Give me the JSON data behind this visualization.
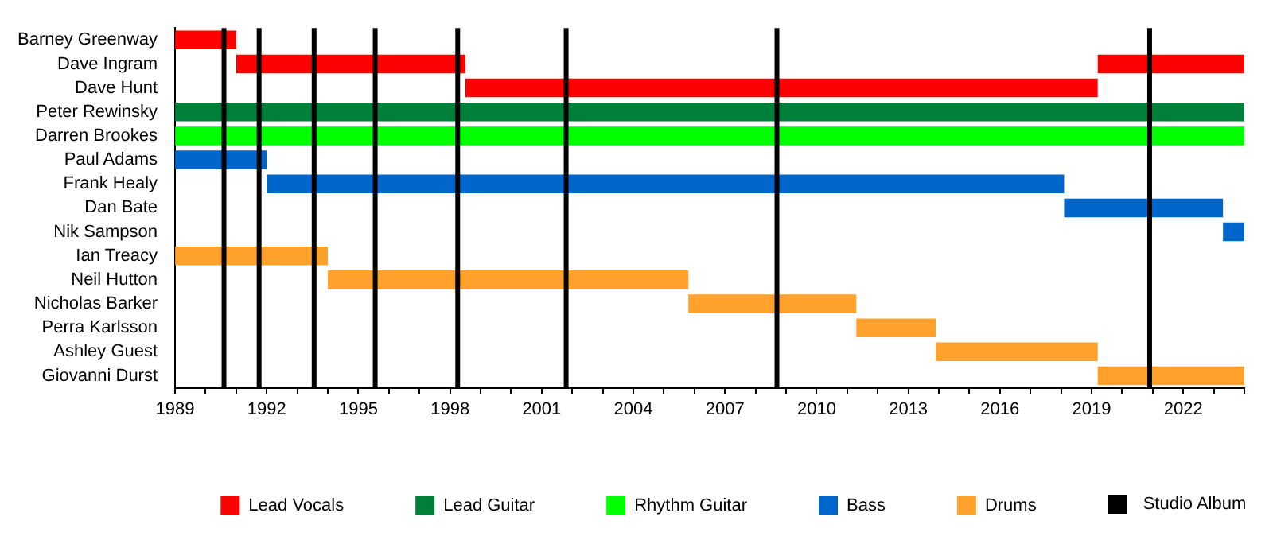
{
  "chart_data": {
    "type": "bar",
    "orientation": "horizontal",
    "categories": [
      "Barney Greenway",
      "Dave Ingram",
      "Dave Hunt",
      "Peter Rewinsky",
      "Darren Brookes",
      "Paul Adams",
      "Frank Healy",
      "Dan Bate",
      "Nik Sampson",
      "Ian Treacy",
      "Neil Hutton",
      "Nicholas Barker",
      "Perra Karlsson",
      "Ashley Guest",
      "Giovanni Durst"
    ],
    "series": [
      {
        "name": "Lead Vocals",
        "color": "#ff0000",
        "values": [
          2,
          7.5,
          20.7,
          null,
          null,
          null,
          null,
          null,
          null,
          null,
          null,
          null,
          null,
          null,
          null
        ],
        "base": [
          1989,
          1991,
          1998.5,
          null,
          null,
          null,
          null,
          null,
          null,
          null,
          null,
          null,
          null,
          null,
          null
        ]
      },
      {
        "color": "#ff0000",
        "values": [
          null,
          4.8,
          null,
          null,
          null,
          null,
          null,
          null,
          null,
          null,
          null,
          null,
          null,
          null,
          null
        ],
        "base": [
          null,
          2019.2,
          null,
          null,
          null,
          null,
          null,
          null,
          null,
          null,
          null,
          null,
          null,
          null,
          null
        ]
      },
      {
        "name": "Lead Guitar",
        "color": "#007f3b",
        "values": [
          null,
          null,
          null,
          35,
          null,
          null,
          null,
          null,
          null,
          null,
          null,
          null,
          null,
          null,
          null
        ],
        "base": [
          null,
          null,
          null,
          1989,
          null,
          null,
          null,
          null,
          null,
          null,
          null,
          null,
          null,
          null,
          null
        ]
      },
      {
        "name": "Rhythm Guitar",
        "color": "#00ff00",
        "values": [
          null,
          null,
          null,
          null,
          35,
          null,
          null,
          null,
          null,
          null,
          null,
          null,
          null,
          null,
          null
        ],
        "base": [
          null,
          null,
          null,
          null,
          1989,
          null,
          null,
          null,
          null,
          null,
          null,
          null,
          null,
          null,
          null
        ]
      },
      {
        "name": "Bass",
        "color": "#0066cc",
        "values": [
          null,
          null,
          null,
          null,
          null,
          3,
          26.1,
          5.2,
          0.7,
          null,
          null,
          null,
          null,
          null,
          null
        ],
        "base": [
          null,
          null,
          null,
          null,
          null,
          1989,
          1992,
          2018.1,
          2023.3,
          null,
          null,
          null,
          null,
          null,
          null
        ]
      },
      {
        "name": "Drums",
        "color": "#ffa12b",
        "values": [
          null,
          null,
          null,
          null,
          null,
          null,
          null,
          null,
          null,
          5,
          11.8,
          5.5,
          2.6,
          5.3,
          4.8
        ],
        "base": [
          null,
          null,
          null,
          null,
          null,
          null,
          null,
          null,
          null,
          1989,
          1994,
          2005.8,
          2011.3,
          2013.9,
          2019.2
        ]
      }
    ],
    "xlim": [
      1989,
      2024
    ],
    "xticks": [
      1989,
      {
        "value": 1990,
        "label": null
      },
      {
        "value": 1991,
        "label": null
      },
      1992,
      {
        "value": 1993,
        "label": null
      },
      {
        "value": 1994,
        "label": null
      },
      1995,
      {
        "value": 1996,
        "label": null
      },
      {
        "value": 1997,
        "label": null
      },
      1998,
      {
        "value": 1999,
        "label": null
      },
      {
        "value": 2000,
        "label": null
      },
      2001,
      {
        "value": 2002,
        "label": null
      },
      {
        "value": 2003,
        "label": null
      },
      2004,
      {
        "value": 2005,
        "label": null
      },
      {
        "value": 2006,
        "label": null
      },
      2007,
      {
        "value": 2008,
        "label": null
      },
      {
        "value": 2009,
        "label": null
      },
      2010,
      {
        "value": 2011,
        "label": null
      },
      {
        "value": 2012,
        "label": null
      },
      2013,
      {
        "value": 2014,
        "label": null
      },
      {
        "value": 2015,
        "label": null
      },
      2016,
      {
        "value": 2017,
        "label": null
      },
      {
        "value": 2018,
        "label": null
      },
      2019,
      {
        "value": 2020,
        "label": null
      },
      {
        "value": 2021,
        "label": null
      },
      2022,
      {
        "value": 2023,
        "label": null
      },
      {
        "value": 2024,
        "label": null
      }
    ],
    "ref_lines": [
      {
        "axis": "x",
        "value": 1990.6,
        "color": "#000000"
      },
      {
        "axis": "x",
        "value": 1991.75,
        "color": "#000000"
      },
      {
        "axis": "x",
        "value": 1993.55,
        "color": "#000000"
      },
      {
        "axis": "x",
        "value": 1995.55,
        "color": "#000000"
      },
      {
        "axis": "x",
        "value": 1998.25,
        "color": "#000000"
      },
      {
        "axis": "x",
        "value": 2001.8,
        "color": "#000000"
      },
      {
        "axis": "x",
        "value": 2008.7,
        "color": "#000000"
      },
      {
        "axis": "x",
        "value": 2020.9,
        "color": "#000000"
      }
    ],
    "annotations": [
      "Studio Album"
    ],
    "legend": "bottom",
    "grid": false
  }
}
